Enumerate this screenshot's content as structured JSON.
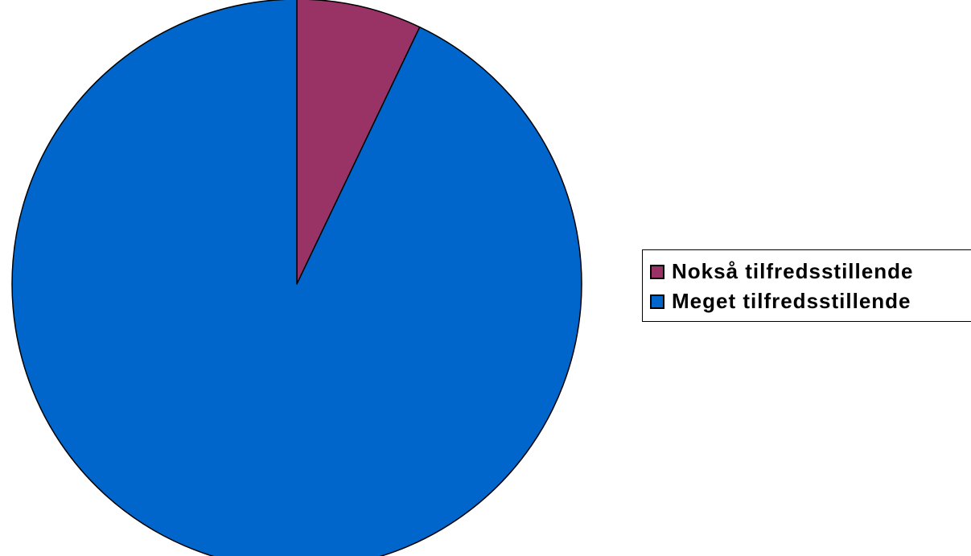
{
  "chart_data": {
    "type": "pie",
    "categories": [
      "Nokså tilfredsstillende",
      "Meget tilfredsstillende"
    ],
    "values": [
      7.1,
      92.9
    ],
    "colors": [
      "#993366",
      "#0066CC"
    ],
    "start_angle": "12 o'clock",
    "direction": "clockwise",
    "legend": {
      "placement": "right",
      "items": [
        {
          "label": "Nokså tilfredsstillende",
          "color": "#993366"
        },
        {
          "label": "Meget tilfredsstillende",
          "color": "#0066CC"
        }
      ]
    }
  }
}
